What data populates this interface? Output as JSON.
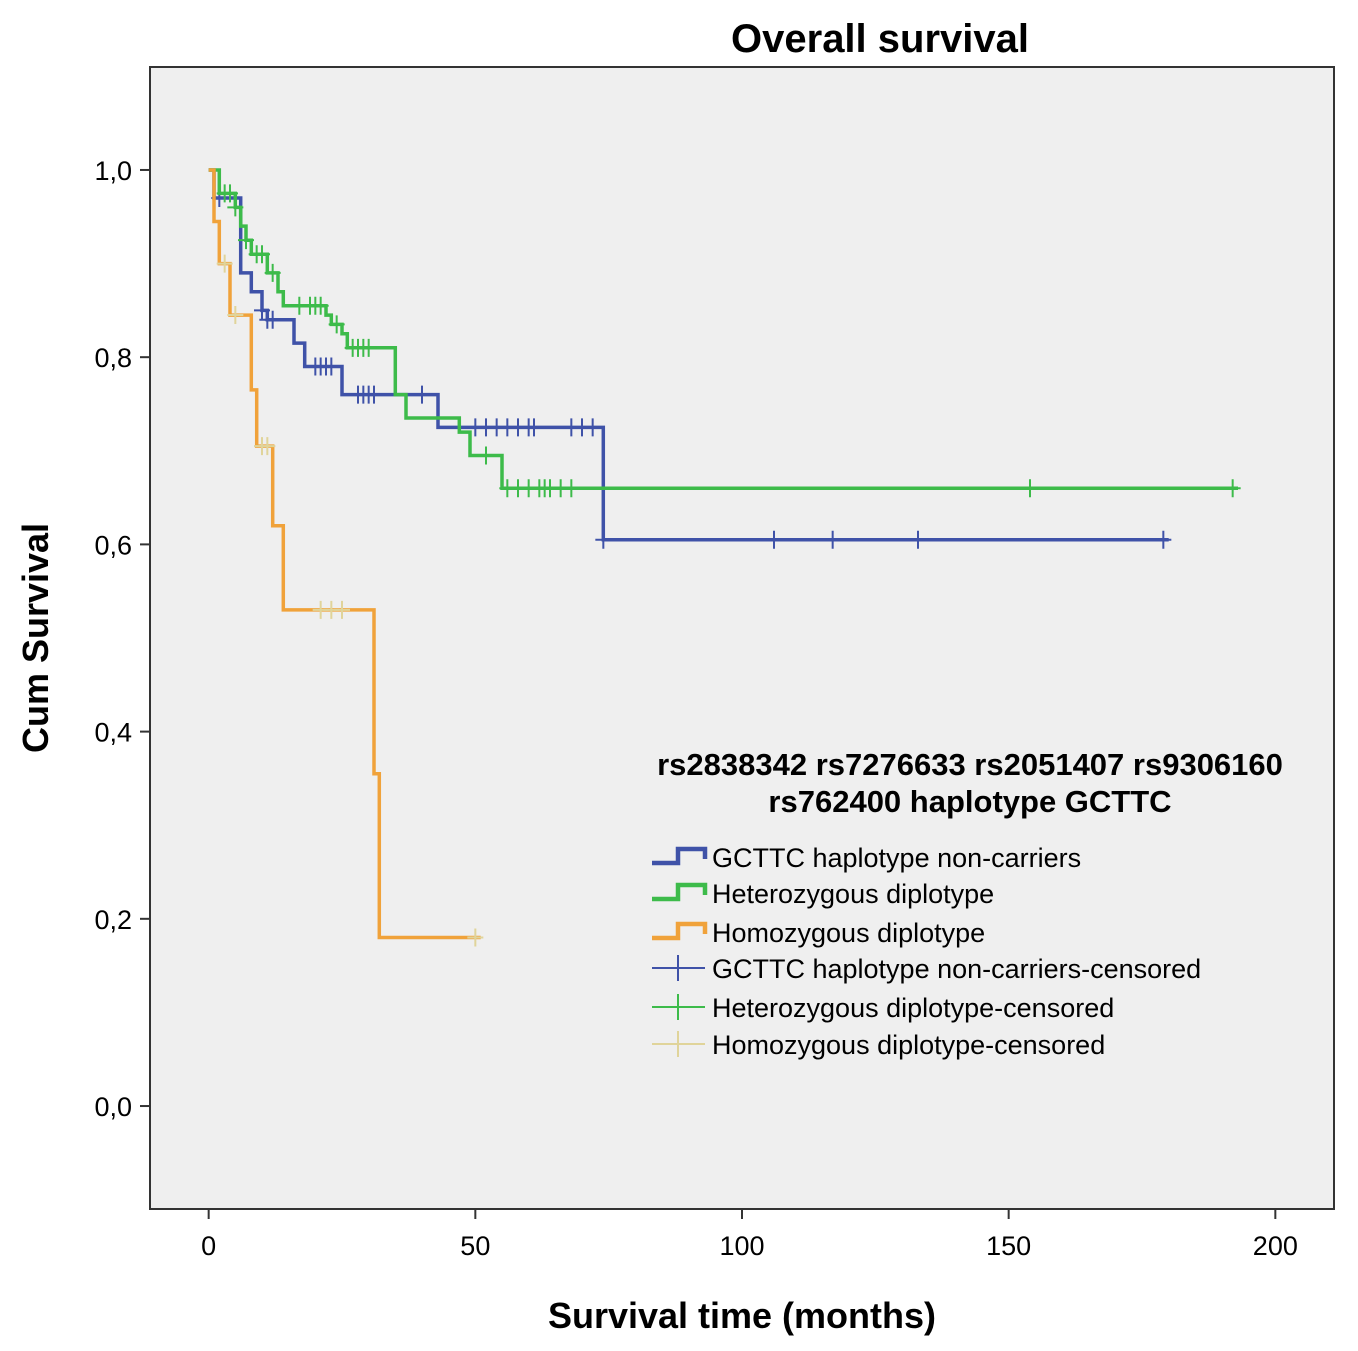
{
  "chart_data": {
    "type": "line",
    "subtype": "kaplan-meier",
    "title": "Overall survival",
    "xlabel": "Survival time (months)",
    "ylabel": "Cum Survival",
    "xlim": [
      -11,
      211
    ],
    "ylim": [
      -0.11,
      1.11
    ],
    "x_ticks": [
      0,
      50,
      100,
      150,
      200
    ],
    "x_tick_labels": [
      "0",
      "50",
      "100",
      "150",
      "200"
    ],
    "y_ticks": [
      0.0,
      0.2,
      0.4,
      0.6,
      0.8,
      1.0
    ],
    "y_tick_labels": [
      "0,0",
      "0,2",
      "0,4",
      "0,6",
      "0,8",
      "1,0"
    ],
    "grid": false,
    "background": "#efefef",
    "legend": {
      "title_line1": "rs2838342 rs7276633 rs2051407 rs9306160",
      "title_line2": "rs762400 haplotype GCTTC",
      "placement": "center-right",
      "entries": [
        {
          "label": "GCTTC haplotype non-carriers",
          "kind": "line",
          "color": "#3f52a8"
        },
        {
          "label": "Heterozygous diplotype",
          "kind": "line",
          "color": "#3dbb4a"
        },
        {
          "label": "Homozygous diplotype",
          "kind": "line",
          "color": "#f0a23a"
        },
        {
          "label": "GCTTC haplotype non-carriers-censored",
          "kind": "censor",
          "color": "#3f52a8"
        },
        {
          "label": "Heterozygous diplotype-censored",
          "kind": "censor",
          "color": "#3dbb4a"
        },
        {
          "label": "Homozygous diplotype-censored",
          "kind": "censor",
          "color": "#e0d49a"
        }
      ]
    },
    "series": [
      {
        "name": "GCTTC haplotype non-carriers",
        "color": "#3f52a8",
        "censor_color": "#3f52a8",
        "steps": [
          [
            0,
            1.0
          ],
          [
            1,
            0.97
          ],
          [
            6,
            0.89
          ],
          [
            8,
            0.87
          ],
          [
            10,
            0.85
          ],
          [
            11,
            0.84
          ],
          [
            16,
            0.815
          ],
          [
            18,
            0.79
          ],
          [
            25,
            0.76
          ],
          [
            43,
            0.725
          ],
          [
            74,
            0.605
          ],
          [
            180,
            0.605
          ]
        ],
        "censored": [
          [
            2,
            0.97
          ],
          [
            10,
            0.85
          ],
          [
            11,
            0.84
          ],
          [
            12,
            0.84
          ],
          [
            20,
            0.79
          ],
          [
            21,
            0.79
          ],
          [
            22,
            0.79
          ],
          [
            23,
            0.79
          ],
          [
            28,
            0.76
          ],
          [
            29,
            0.76
          ],
          [
            30,
            0.76
          ],
          [
            31,
            0.76
          ],
          [
            40,
            0.76
          ],
          [
            50,
            0.725
          ],
          [
            52,
            0.725
          ],
          [
            54,
            0.725
          ],
          [
            56,
            0.725
          ],
          [
            58,
            0.725
          ],
          [
            60,
            0.725
          ],
          [
            61,
            0.725
          ],
          [
            68,
            0.725
          ],
          [
            70,
            0.725
          ],
          [
            72,
            0.725
          ],
          [
            74,
            0.605
          ],
          [
            106,
            0.605
          ],
          [
            117,
            0.605
          ],
          [
            133,
            0.605
          ],
          [
            179,
            0.605
          ]
        ]
      },
      {
        "name": "Heterozygous diplotype",
        "color": "#3dbb4a",
        "censor_color": "#3dbb4a",
        "steps": [
          [
            0,
            1.0
          ],
          [
            2,
            0.975
          ],
          [
            5,
            0.96
          ],
          [
            6,
            0.94
          ],
          [
            7,
            0.925
          ],
          [
            8,
            0.91
          ],
          [
            11,
            0.89
          ],
          [
            13,
            0.87
          ],
          [
            14,
            0.855
          ],
          [
            22,
            0.845
          ],
          [
            23,
            0.835
          ],
          [
            25,
            0.825
          ],
          [
            26,
            0.81
          ],
          [
            35,
            0.76
          ],
          [
            37,
            0.735
          ],
          [
            47,
            0.72
          ],
          [
            49,
            0.695
          ],
          [
            55,
            0.66
          ],
          [
            193,
            0.66
          ]
        ],
        "censored": [
          [
            3,
            0.975
          ],
          [
            4,
            0.975
          ],
          [
            5,
            0.96
          ],
          [
            7,
            0.925
          ],
          [
            9,
            0.91
          ],
          [
            10,
            0.91
          ],
          [
            12,
            0.89
          ],
          [
            17,
            0.855
          ],
          [
            19,
            0.855
          ],
          [
            20,
            0.855
          ],
          [
            21,
            0.855
          ],
          [
            24,
            0.835
          ],
          [
            27,
            0.81
          ],
          [
            28,
            0.81
          ],
          [
            29,
            0.81
          ],
          [
            30,
            0.81
          ],
          [
            52,
            0.695
          ],
          [
            56,
            0.66
          ],
          [
            58,
            0.66
          ],
          [
            60,
            0.66
          ],
          [
            62,
            0.66
          ],
          [
            63,
            0.66
          ],
          [
            64,
            0.66
          ],
          [
            66,
            0.66
          ],
          [
            68,
            0.66
          ],
          [
            154,
            0.66
          ],
          [
            192,
            0.66
          ]
        ]
      },
      {
        "name": "Homozygous diplotype",
        "color": "#f0a23a",
        "censor_color": "#e0d49a",
        "steps": [
          [
            0,
            1.0
          ],
          [
            1,
            0.945
          ],
          [
            2,
            0.9
          ],
          [
            4,
            0.845
          ],
          [
            8,
            0.765
          ],
          [
            9,
            0.705
          ],
          [
            12,
            0.62
          ],
          [
            14,
            0.53
          ],
          [
            31,
            0.355
          ],
          [
            32,
            0.18
          ],
          [
            51,
            0.18
          ]
        ],
        "censored": [
          [
            3,
            0.9
          ],
          [
            5,
            0.845
          ],
          [
            10,
            0.705
          ],
          [
            11,
            0.705
          ],
          [
            21,
            0.53
          ],
          [
            23,
            0.53
          ],
          [
            25,
            0.53
          ],
          [
            50,
            0.18
          ]
        ]
      }
    ]
  }
}
